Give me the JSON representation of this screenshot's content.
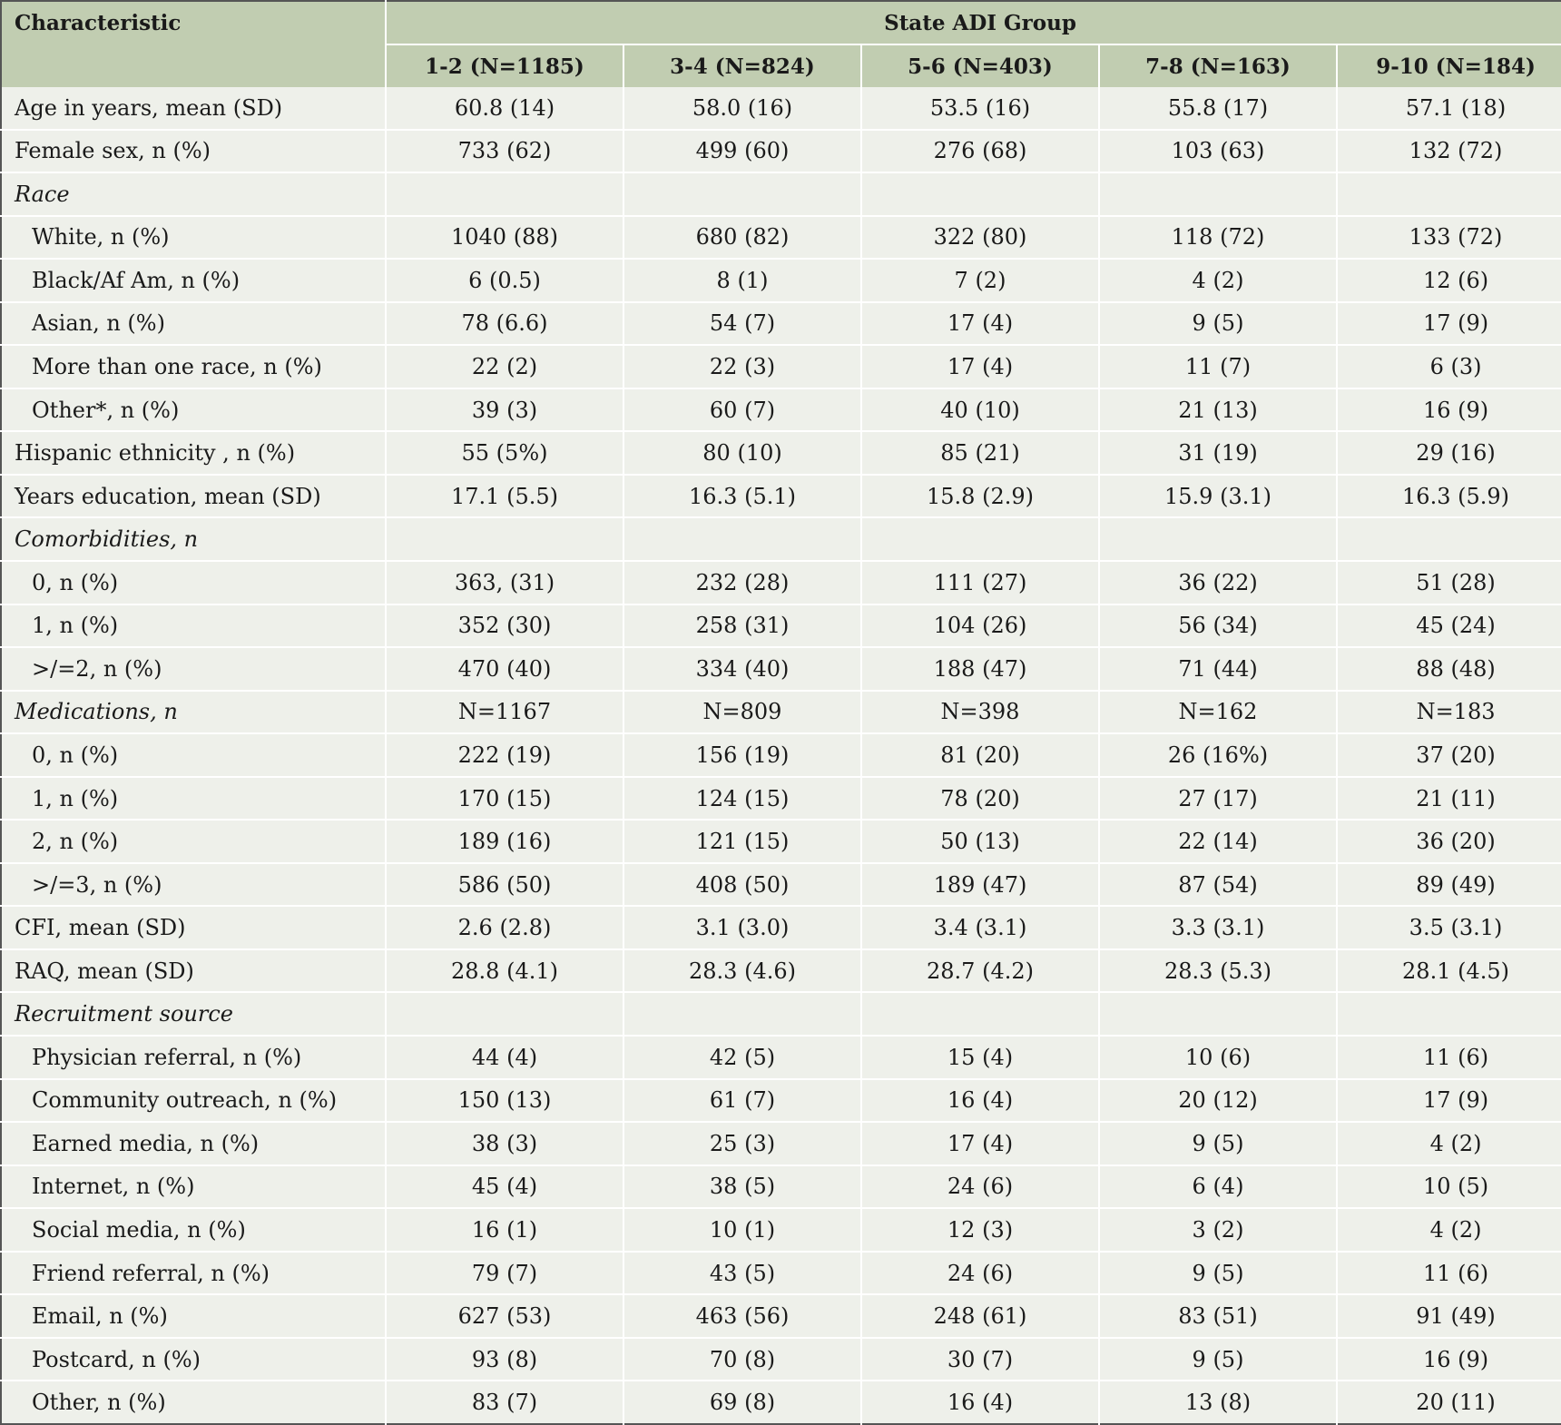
{
  "header": {
    "characteristic": "Characteristic",
    "group_title": "State ADI Group",
    "columns": [
      "1-2 (N=1185)",
      "3-4 (N=824)",
      "5-6 (N=403)",
      "7-8 (N=163)",
      "9-10 (N=184)"
    ]
  },
  "rows": [
    {
      "label": "Age in years, mean (SD)",
      "values": [
        "60.8 (14)",
        "58.0 (16)",
        "53.5 (16)",
        "55.8 (17)",
        "57.1 (18)"
      ]
    },
    {
      "label": "Female sex, n (%)",
      "values": [
        "733 (62)",
        "499 (60)",
        "276 (68)",
        "103 (63)",
        "132 (72)"
      ]
    },
    {
      "label": "Race",
      "values": [
        "",
        "",
        "",
        "",
        ""
      ]
    },
    {
      "label": "White, n (%)",
      "values": [
        "1040 (88)",
        "680 (82)",
        "322 (80)",
        "118 (72)",
        "133 (72)"
      ]
    },
    {
      "label": "Black/Af Am, n (%)",
      "values": [
        "6 (0.5)",
        "8 (1)",
        "7 (2)",
        "4 (2)",
        "12 (6)"
      ]
    },
    {
      "label": "Asian, n (%)",
      "values": [
        "78 (6.6)",
        "54 (7)",
        "17 (4)",
        "9 (5)",
        "17 (9)"
      ]
    },
    {
      "label": "More than one race, n (%)",
      "values": [
        "22 (2)",
        "22 (3)",
        "17 (4)",
        "11 (7)",
        "6 (3)"
      ]
    },
    {
      "label": "Other*, n (%)",
      "values": [
        "39 (3)",
        "60 (7)",
        "40 (10)",
        "21 (13)",
        "16 (9)"
      ]
    },
    {
      "label": "Hispanic ethnicity , n (%)",
      "values": [
        "55 (5%)",
        "80 (10)",
        "85 (21)",
        "31 (19)",
        "29 (16)"
      ]
    },
    {
      "label": "Years education, mean (SD)",
      "values": [
        "17.1 (5.5)",
        "16.3 (5.1)",
        "15.8 (2.9)",
        "15.9 (3.1)",
        "16.3 (5.9)"
      ]
    },
    {
      "label": "Comorbidities, n",
      "values": [
        "",
        "",
        "",
        "",
        ""
      ]
    },
    {
      "label": "0, n (%)",
      "values": [
        "363, (31)",
        "232 (28)",
        "111 (27)",
        "36 (22)",
        "51 (28)"
      ]
    },
    {
      "label": "1, n (%)",
      "values": [
        "352 (30)",
        "258 (31)",
        "104 (26)",
        "56 (34)",
        "45 (24)"
      ]
    },
    {
      "label": ">/=2, n (%)",
      "values": [
        "470 (40)",
        "334 (40)",
        "188 (47)",
        "71 (44)",
        "88 (48)"
      ]
    },
    {
      "label": "Medications, n",
      "values": [
        "N=1167",
        "N=809",
        "N=398",
        "N=162",
        "N=183"
      ]
    },
    {
      "label": "0, n (%)",
      "values": [
        "222 (19)",
        "156 (19)",
        "81 (20)",
        "26 (16%)",
        "37 (20)"
      ]
    },
    {
      "label": "1, n (%)",
      "values": [
        "170 (15)",
        "124 (15)",
        "78 (20)",
        "27 (17)",
        "21 (11)"
      ]
    },
    {
      "label": "2, n (%)",
      "values": [
        "189 (16)",
        "121 (15)",
        "50 (13)",
        "22 (14)",
        "36 (20)"
      ]
    },
    {
      "label": ">/=3, n (%)",
      "values": [
        "586 (50)",
        "408 (50)",
        "189 (47)",
        "87 (54)",
        "89 (49)"
      ]
    },
    {
      "label": "CFI, mean (SD)",
      "values": [
        "2.6 (2.8)",
        "3.1 (3.0)",
        "3.4 (3.1)",
        "3.3 (3.1)",
        "3.5 (3.1)"
      ]
    },
    {
      "label": "RAQ, mean (SD)",
      "values": [
        "28.8 (4.1)",
        "28.3 (4.6)",
        "28.7 (4.2)",
        "28.3 (5.3)",
        "28.1 (4.5)"
      ]
    },
    {
      "label": "Recruitment source",
      "values": [
        "",
        "",
        "",
        "",
        ""
      ]
    },
    {
      "label": "Physician referral, n (%)",
      "values": [
        "44 (4)",
        "42 (5)",
        "15 (4)",
        "10 (6)",
        "11 (6)"
      ]
    },
    {
      "label": "Community outreach, n (%)",
      "values": [
        "150 (13)",
        "61 (7)",
        "16 (4)",
        "20 (12)",
        "17 (9)"
      ]
    },
    {
      "label": "Earned media, n (%)",
      "values": [
        "38 (3)",
        "25 (3)",
        "17 (4)",
        "9 (5)",
        "4 (2)"
      ]
    },
    {
      "label": "Internet, n (%)",
      "values": [
        "45 (4)",
        "38 (5)",
        "24 (6)",
        "6 (4)",
        "10 (5)"
      ]
    },
    {
      "label": "Social media, n (%)",
      "values": [
        "16 (1)",
        "10 (1)",
        "12 (3)",
        "3 (2)",
        "4 (2)"
      ]
    },
    {
      "label": "Friend referral, n (%)",
      "values": [
        "79 (7)",
        "43 (5)",
        "24 (6)",
        "9 (5)",
        "11 (6)"
      ]
    },
    {
      "label": "Email, n (%)",
      "values": [
        "627 (53)",
        "463 (56)",
        "248 (61)",
        "83 (51)",
        "91 (49)"
      ]
    },
    {
      "label": "Postcard, n (%)",
      "values": [
        "93 (8)",
        "70 (8)",
        "30 (7)",
        "9 (5)",
        "16 (9)"
      ]
    },
    {
      "label": "Other, n (%)",
      "values": [
        "83 (7)",
        "69 (8)",
        "16 (4)",
        "13 (8)",
        "20 (11)"
      ]
    }
  ]
}
